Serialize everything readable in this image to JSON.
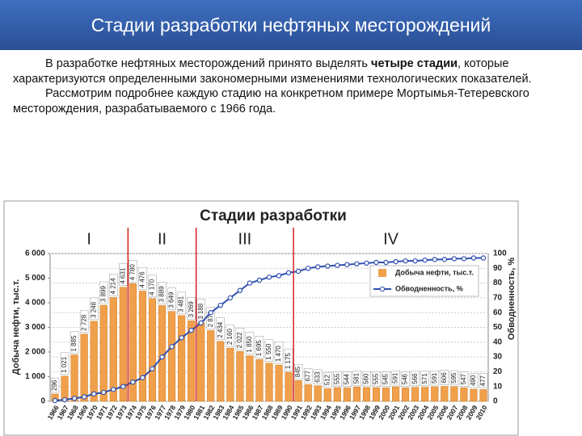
{
  "header": {
    "title": "Стадии разработки нефтяных месторождений"
  },
  "text": {
    "p1_start": "В разработке нефтяных месторождений принято выделять ",
    "p1_bold": "четыре стадии",
    "p1_end": ", которые характеризуются определенными закономерными изменениями технологических показателей.",
    "p2": "Рассмотрим подробнее каждую стадию на конкретном примере Мортымья-Тетеревского месторождения, разрабатываемого с 1966 года."
  },
  "chart_data": {
    "type": "bar",
    "title": "Стадии разработки",
    "ylabel": "Добыча нефти, тыс.т.",
    "y2label": "Обводненность, %",
    "categories": [
      "1966",
      "1967",
      "1968",
      "1969",
      "1970",
      "1971",
      "1972",
      "1973",
      "1974",
      "1975",
      "1976",
      "1977",
      "1978",
      "1979",
      "1980",
      "1981",
      "1982",
      "1983",
      "1984",
      "1985",
      "1986",
      "1987",
      "1988",
      "1989",
      "1990",
      "1991",
      "1992",
      "1993",
      "1994",
      "1995",
      "1996",
      "1997",
      "1998",
      "1999",
      "2000",
      "2001",
      "2002",
      "2003",
      "2004",
      "2005",
      "2006",
      "2007",
      "2008",
      "2009",
      "2010"
    ],
    "series": [
      {
        "name": "Добыча нефти, тыс.т.",
        "type": "bar",
        "color": "#f0a04b",
        "values": [
          296,
          1021,
          1885,
          2728,
          3248,
          3899,
          4214,
          4631,
          4780,
          4476,
          4170,
          3889,
          3649,
          3481,
          3269,
          3188,
          2871,
          2434,
          2160,
          2022,
          1850,
          1695,
          1550,
          1470,
          1175,
          845,
          677,
          633,
          512,
          555,
          544,
          581,
          560,
          555,
          545,
          591,
          546,
          566,
          571,
          591,
          606,
          595,
          547,
          490,
          477
        ],
        "value_labels": [
          "296",
          "1 021",
          "1 885",
          "2 728",
          "3 248",
          "3 899",
          "4 214",
          "4 631",
          "4 780",
          "4 476",
          "4 170",
          "3 889",
          "3 649",
          "3 481",
          "3 269",
          "3 188",
          "2 871",
          "2 434",
          "2 160",
          "2 022",
          "1 850",
          "1 695",
          "1 550",
          "1 470",
          "1 175",
          "845",
          "677",
          "633",
          "512",
          "555",
          "544",
          "581",
          "560",
          "555",
          "545",
          "591",
          "546",
          "566",
          "571",
          "591",
          "606",
          "595",
          "547",
          "490",
          "477"
        ]
      },
      {
        "name": "Обводненность, %",
        "type": "line",
        "axis": "y2",
        "color": "#2f4fb0",
        "values": [
          0.5,
          1,
          2,
          3,
          5,
          6,
          8,
          10,
          13,
          16,
          22,
          30,
          37,
          43,
          48,
          53,
          60,
          65,
          70,
          75,
          80,
          82,
          84,
          85,
          87,
          88,
          90,
          91,
          91.5,
          92,
          92.5,
          93,
          93.5,
          94,
          94,
          94.5,
          95,
          95,
          95.5,
          96,
          96,
          96.5,
          96.5,
          97,
          97
        ]
      }
    ],
    "ylim": [
      0,
      6000
    ],
    "yticks": [
      0,
      {
        "value": 1000,
        "label": "1 000"
      },
      {
        "value": 2000,
        "label": "2 000"
      },
      {
        "value": 3000,
        "label": "3 000"
      },
      {
        "value": 4000,
        "label": "4 000"
      },
      {
        "value": 5000,
        "label": "5 000"
      },
      {
        "value": 6000,
        "label": "6 000"
      }
    ],
    "y2lim": [
      0,
      100
    ],
    "y2ticks": [
      0,
      10,
      20,
      30,
      40,
      50,
      60,
      70,
      80,
      90,
      100
    ],
    "grid": true,
    "legend": "right",
    "stages": [
      {
        "label": "I",
        "from": "1966",
        "to": "1973"
      },
      {
        "label": "II",
        "from": "1974",
        "to": "1980"
      },
      {
        "label": "III",
        "from": "1981",
        "to": "1990"
      },
      {
        "label": "IV",
        "from": "1991",
        "to": "2010"
      }
    ],
    "stage_color": "#d62020"
  }
}
